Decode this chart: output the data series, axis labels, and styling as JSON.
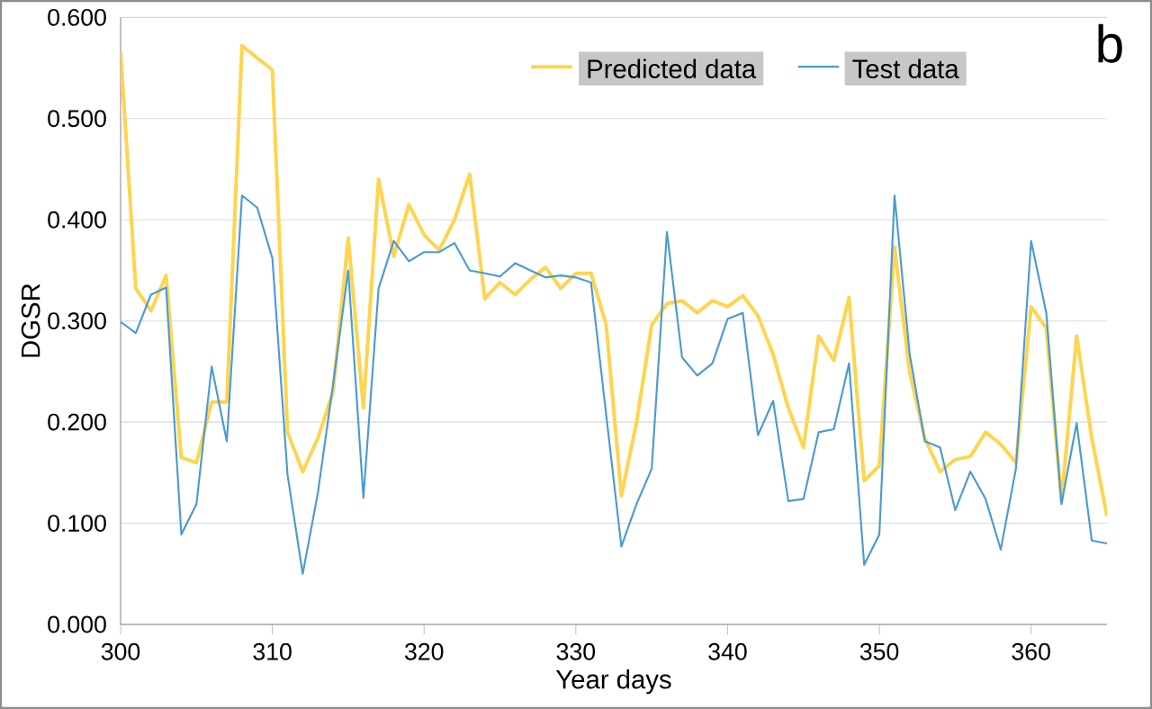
{
  "chart_data": {
    "type": "line",
    "xlabel": "Year days",
    "ylabel": "DGSR",
    "annotations": [
      "b"
    ],
    "x": [
      300,
      301,
      302,
      303,
      304,
      305,
      306,
      307,
      308,
      309,
      310,
      311,
      312,
      313,
      314,
      315,
      316,
      317,
      318,
      319,
      320,
      321,
      322,
      323,
      324,
      325,
      326,
      327,
      328,
      329,
      330,
      331,
      332,
      333,
      334,
      335,
      336,
      337,
      338,
      339,
      340,
      341,
      342,
      343,
      344,
      345,
      346,
      347,
      348,
      349,
      350,
      351,
      352,
      353,
      354,
      355,
      356,
      357,
      358,
      359,
      360,
      361,
      362,
      363,
      364,
      365
    ],
    "series": [
      {
        "name": "Predicted data",
        "color": "#ffd44f",
        "values": [
          0.566,
          0.332,
          0.31,
          0.345,
          0.165,
          0.16,
          0.22,
          0.22,
          0.572,
          0.56,
          0.548,
          0.19,
          0.151,
          0.184,
          0.23,
          0.382,
          0.214,
          0.44,
          0.364,
          0.415,
          0.385,
          0.37,
          0.4,
          0.445,
          0.322,
          0.338,
          0.326,
          0.341,
          0.353,
          0.332,
          0.347,
          0.347,
          0.296,
          0.127,
          0.2,
          0.296,
          0.317,
          0.32,
          0.308,
          0.32,
          0.314,
          0.325,
          0.305,
          0.267,
          0.214,
          0.175,
          0.285,
          0.261,
          0.323,
          0.142,
          0.157,
          0.373,
          0.249,
          0.184,
          0.151,
          0.163,
          0.166,
          0.19,
          0.178,
          0.16,
          0.314,
          0.293,
          0.122,
          0.285,
          0.184,
          0.107
        ]
      },
      {
        "name": "Test data",
        "color": "#4a9ad4",
        "values": [
          0.299,
          0.288,
          0.326,
          0.333,
          0.089,
          0.119,
          0.255,
          0.181,
          0.424,
          0.412,
          0.362,
          0.148,
          0.05,
          0.13,
          0.237,
          0.35,
          0.125,
          0.332,
          0.379,
          0.359,
          0.368,
          0.368,
          0.377,
          0.35,
          0.347,
          0.344,
          0.357,
          0.35,
          0.343,
          0.345,
          0.343,
          0.338,
          0.207,
          0.077,
          0.119,
          0.154,
          0.388,
          0.264,
          0.246,
          0.258,
          0.302,
          0.308,
          0.187,
          0.221,
          0.122,
          0.124,
          0.19,
          0.193,
          0.258,
          0.059,
          0.089,
          0.424,
          0.267,
          0.181,
          0.175,
          0.113,
          0.151,
          0.124,
          0.074,
          0.154,
          0.379,
          0.308,
          0.119,
          0.199,
          0.083,
          0.08
        ]
      }
    ],
    "xlim": [
      300,
      365
    ],
    "xticks": [
      300,
      310,
      320,
      330,
      340,
      350,
      360
    ],
    "ylim": [
      0,
      0.6
    ],
    "yticks": [
      {
        "value": 0,
        "label": "0.000"
      },
      {
        "value": 0.1,
        "label": "0.100"
      },
      {
        "value": 0.2,
        "label": "0.200"
      },
      {
        "value": 0.3,
        "label": "0.300"
      },
      {
        "value": 0.4,
        "label": "0.400"
      },
      {
        "value": 0.5,
        "label": "0.500"
      },
      {
        "value": 0.6,
        "label": "0.600"
      }
    ],
    "grid": "y",
    "legend": "top right",
    "marker": "none",
    "line_style": "solid"
  }
}
